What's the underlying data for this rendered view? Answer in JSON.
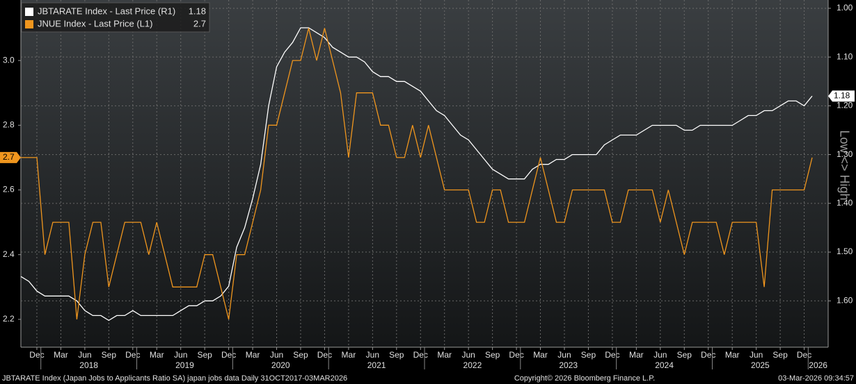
{
  "chart_data": {
    "type": "line",
    "x": [
      "2017-10",
      "2017-11",
      "2017-12",
      "2018-01",
      "2018-02",
      "2018-03",
      "2018-04",
      "2018-05",
      "2018-06",
      "2018-07",
      "2018-08",
      "2018-09",
      "2018-10",
      "2018-11",
      "2018-12",
      "2019-01",
      "2019-02",
      "2019-03",
      "2019-04",
      "2019-05",
      "2019-06",
      "2019-07",
      "2019-08",
      "2019-09",
      "2019-10",
      "2019-11",
      "2019-12",
      "2020-01",
      "2020-02",
      "2020-03",
      "2020-04",
      "2020-05",
      "2020-06",
      "2020-07",
      "2020-08",
      "2020-09",
      "2020-10",
      "2020-11",
      "2020-12",
      "2021-01",
      "2021-02",
      "2021-03",
      "2021-04",
      "2021-05",
      "2021-06",
      "2021-07",
      "2021-08",
      "2021-09",
      "2021-10",
      "2021-11",
      "2021-12",
      "2022-01",
      "2022-02",
      "2022-03",
      "2022-04",
      "2022-05",
      "2022-06",
      "2022-07",
      "2022-08",
      "2022-09",
      "2022-10",
      "2022-11",
      "2022-12",
      "2023-01",
      "2023-02",
      "2023-03",
      "2023-04",
      "2023-05",
      "2023-06",
      "2023-07",
      "2023-08",
      "2023-09",
      "2023-10",
      "2023-11",
      "2023-12",
      "2024-01",
      "2024-02",
      "2024-03",
      "2024-04",
      "2024-05",
      "2024-06",
      "2024-07",
      "2024-08",
      "2024-09",
      "2024-10",
      "2024-11",
      "2024-12",
      "2025-01",
      "2025-02",
      "2025-03",
      "2025-04",
      "2025-05",
      "2025-06",
      "2025-07",
      "2025-08",
      "2025-09",
      "2025-10",
      "2025-11",
      "2025-12",
      "2026-01"
    ],
    "series": [
      {
        "name": "JBTARATE Index - Last Price (R1)",
        "color": "#ffffff",
        "axis": "y2",
        "values": [
          1.55,
          1.56,
          1.58,
          1.59,
          1.59,
          1.59,
          1.59,
          1.6,
          1.62,
          1.63,
          1.63,
          1.64,
          1.63,
          1.63,
          1.62,
          1.63,
          1.63,
          1.63,
          1.63,
          1.63,
          1.62,
          1.61,
          1.61,
          1.6,
          1.6,
          1.59,
          1.57,
          1.49,
          1.45,
          1.39,
          1.32,
          1.2,
          1.12,
          1.09,
          1.07,
          1.04,
          1.04,
          1.05,
          1.06,
          1.08,
          1.09,
          1.1,
          1.1,
          1.11,
          1.13,
          1.14,
          1.14,
          1.15,
          1.15,
          1.16,
          1.17,
          1.19,
          1.21,
          1.22,
          1.24,
          1.26,
          1.27,
          1.29,
          1.31,
          1.33,
          1.34,
          1.35,
          1.35,
          1.35,
          1.33,
          1.32,
          1.32,
          1.31,
          1.31,
          1.3,
          1.3,
          1.3,
          1.3,
          1.28,
          1.27,
          1.26,
          1.26,
          1.26,
          1.25,
          1.24,
          1.24,
          1.24,
          1.24,
          1.25,
          1.25,
          1.24,
          1.24,
          1.24,
          1.24,
          1.24,
          1.23,
          1.22,
          1.22,
          1.21,
          1.21,
          1.2,
          1.19,
          1.19,
          1.2,
          1.18
        ]
      },
      {
        "name": "JNUE Index - Last Price (L1)",
        "color": "#f0961e",
        "axis": "y",
        "values": [
          2.7,
          2.7,
          2.7,
          2.4,
          2.5,
          2.5,
          2.5,
          2.2,
          2.4,
          2.5,
          2.5,
          2.3,
          2.4,
          2.5,
          2.5,
          2.5,
          2.4,
          2.5,
          2.4,
          2.3,
          2.3,
          2.3,
          2.3,
          2.4,
          2.4,
          2.3,
          2.2,
          2.4,
          2.4,
          2.5,
          2.6,
          2.8,
          2.8,
          2.9,
          3.0,
          3.0,
          3.1,
          3.0,
          3.1,
          3.0,
          2.9,
          2.7,
          2.9,
          2.9,
          2.9,
          2.8,
          2.8,
          2.7,
          2.7,
          2.8,
          2.7,
          2.8,
          2.7,
          2.6,
          2.6,
          2.6,
          2.6,
          2.5,
          2.5,
          2.6,
          2.6,
          2.5,
          2.5,
          2.5,
          2.6,
          2.7,
          2.6,
          2.5,
          2.5,
          2.6,
          2.6,
          2.6,
          2.6,
          2.6,
          2.5,
          2.5,
          2.6,
          2.6,
          2.6,
          2.6,
          2.5,
          2.6,
          2.5,
          2.4,
          2.5,
          2.5,
          2.5,
          2.5,
          2.4,
          2.5,
          2.5,
          2.5,
          2.5,
          2.3,
          2.6,
          2.6,
          2.6,
          2.6,
          2.6,
          2.7
        ]
      }
    ],
    "ylim": [
      2.114,
      3.187
    ],
    "yticks": [
      2.2,
      2.4,
      2.6,
      2.8,
      {
        "value": 3,
        "label": "3.0"
      }
    ],
    "y2lim": [
      0.983,
      1.695
    ],
    "y2_reversed": true,
    "y2ticks": [
      {
        "value": 1,
        "label": "1.00"
      },
      {
        "value": 1.1,
        "label": "1.10"
      },
      {
        "value": 1.2,
        "label": "1.20"
      },
      {
        "value": 1.3,
        "label": "1.30"
      },
      {
        "value": 1.4,
        "label": "1.40"
      },
      {
        "value": 1.5,
        "label": "1.50"
      },
      {
        "value": 1.6,
        "label": "1.60"
      }
    ],
    "y2_label": "Low <> High",
    "xticks": [
      {
        "value": "2017-12",
        "label": "Dec"
      },
      {
        "value": "2018-03",
        "label": "Mar"
      },
      {
        "value": "2018-06",
        "label": "Jun"
      },
      {
        "value": "2018-09",
        "label": "Sep"
      },
      {
        "value": "2018-12",
        "label": "Dec"
      },
      {
        "value": "2019-03",
        "label": "Mar"
      },
      {
        "value": "2019-06",
        "label": "Jun"
      },
      {
        "value": "2019-09",
        "label": "Sep"
      },
      {
        "value": "2019-12",
        "label": "Dec"
      },
      {
        "value": "2020-03",
        "label": "Mar"
      },
      {
        "value": "2020-06",
        "label": "Jun"
      },
      {
        "value": "2020-09",
        "label": "Sep"
      },
      {
        "value": "2020-12",
        "label": "Dec"
      },
      {
        "value": "2021-03",
        "label": "Mar"
      },
      {
        "value": "2021-06",
        "label": "Jun"
      },
      {
        "value": "2021-09",
        "label": "Sep"
      },
      {
        "value": "2021-12",
        "label": "Dec"
      },
      {
        "value": "2022-03",
        "label": "Mar"
      },
      {
        "value": "2022-06",
        "label": "Jun"
      },
      {
        "value": "2022-09",
        "label": "Sep"
      },
      {
        "value": "2022-12",
        "label": "Dec"
      },
      {
        "value": "2023-03",
        "label": "Mar"
      },
      {
        "value": "2023-06",
        "label": "Jun"
      },
      {
        "value": "2023-09",
        "label": "Sep"
      },
      {
        "value": "2023-12",
        "label": "Dec"
      },
      {
        "value": "2024-03",
        "label": "Mar"
      },
      {
        "value": "2024-06",
        "label": "Jun"
      },
      {
        "value": "2024-09",
        "label": "Sep"
      },
      {
        "value": "2024-12",
        "label": "Dec"
      },
      {
        "value": "2025-03",
        "label": "Mar"
      },
      {
        "value": "2025-06",
        "label": "Jun"
      },
      {
        "value": "2025-09",
        "label": "Sep"
      },
      {
        "value": "2025-12",
        "label": "Dec"
      }
    ],
    "years": [
      "2018",
      "2019",
      "2020",
      "2021",
      "2022",
      "2023",
      "2024",
      "2025",
      "2026"
    ],
    "grid": true,
    "legend": "top-left"
  },
  "footer": {
    "source": "JBTARATE Index (Japan Jobs to Applicants Ratio SA) japan jobs data Daily 31OCT2017-03MAR2026",
    "copyright": "Copyright© 2026 Bloomberg Finance L.P.",
    "timestamp": "03-Mar-2026 09:34:57"
  }
}
